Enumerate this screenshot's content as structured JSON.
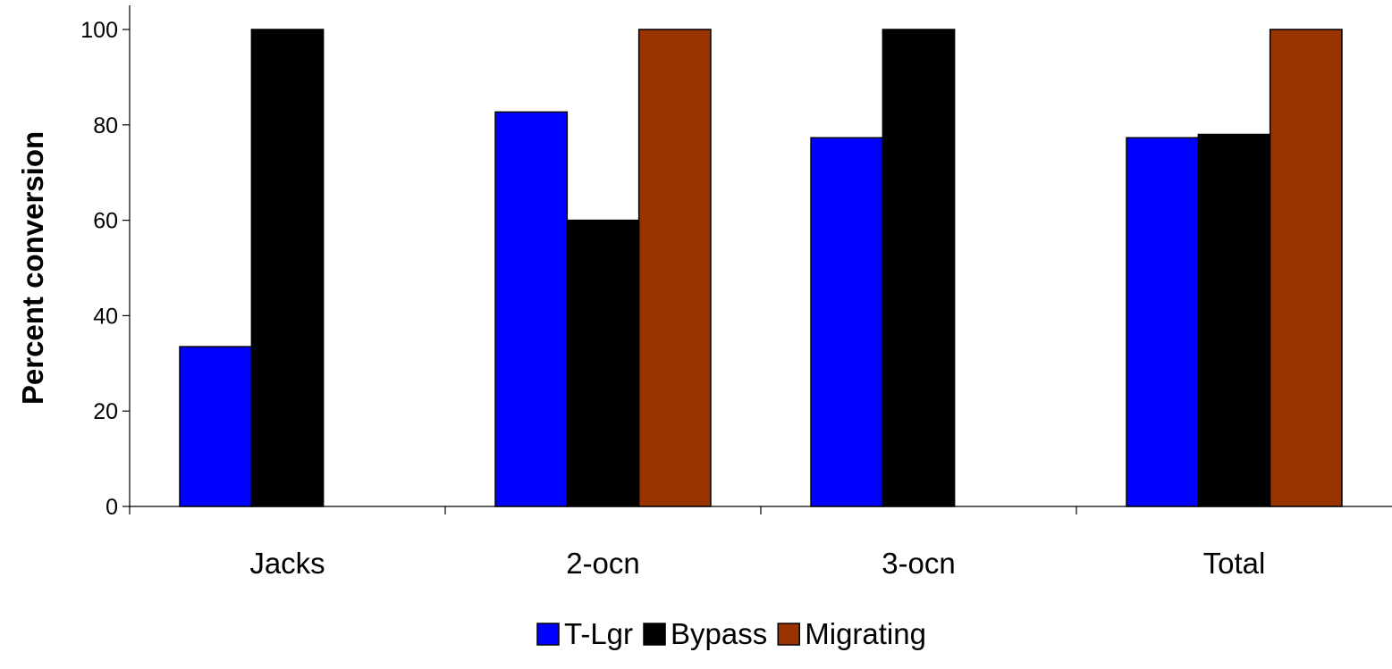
{
  "chart_data": {
    "type": "bar",
    "title": "",
    "xlabel": "",
    "ylabel": "Percent conversion",
    "ylim": [
      0,
      100
    ],
    "yticks": [
      0,
      20,
      40,
      60,
      80,
      100
    ],
    "categories": [
      "Jacks",
      "2-ocn",
      "3-ocn",
      "Total"
    ],
    "series": [
      {
        "name": "T-Lgr",
        "color": "#0000ff",
        "values": [
          33.5,
          82.7,
          77.3,
          77.3
        ]
      },
      {
        "name": "Bypass",
        "color": "#000000",
        "values": [
          100,
          60,
          100,
          78
        ]
      },
      {
        "name": "Migrating",
        "color": "#993300",
        "values": [
          null,
          100,
          null,
          100
        ]
      }
    ],
    "grid": false,
    "legend_position": "bottom"
  }
}
